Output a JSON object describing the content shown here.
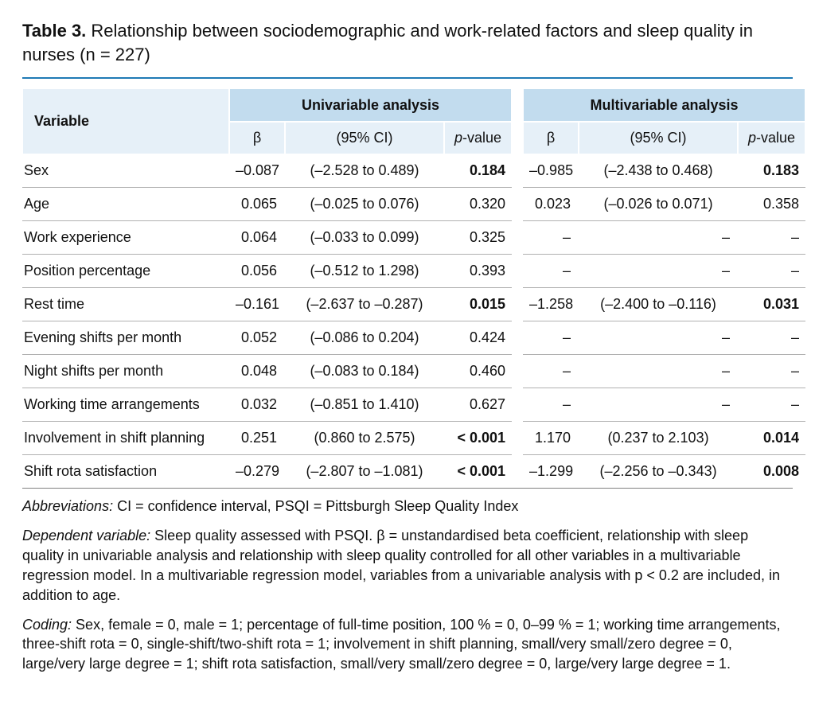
{
  "title_prefix_bold": "Table 3.",
  "title_rest": " Relationship between sociodemographic and work-related factors and sleep quality in nurses (n = 227)",
  "colors": {
    "rule_top": "#1f7ab5",
    "header_dark": "#c2dcee",
    "header_light": "#e6f0f8",
    "row_border": "#b0b0b0"
  },
  "headers": {
    "variable": "Variable",
    "uni": "Univariable analysis",
    "multi": "Multivariable analysis",
    "beta": "β",
    "ci": "(95% CI)",
    "p_prefix_ital": "p",
    "p_rest": "-value"
  },
  "rows": [
    {
      "variable": "Sex",
      "uni": {
        "beta": "–0.087",
        "ci": "(–2.528 to 0.489)",
        "p": "0.184",
        "p_bold": true
      },
      "multi": {
        "beta": "–0.985",
        "ci": "(–2.438 to 0.468)",
        "p": "0.183",
        "p_bold": true
      }
    },
    {
      "variable": "Age",
      "uni": {
        "beta": "0.065",
        "ci": "(–0.025 to 0.076)",
        "p": "0.320",
        "p_bold": false
      },
      "multi": {
        "beta": "0.023",
        "ci": "(–0.026 to 0.071)",
        "p": "0.358",
        "p_bold": false
      }
    },
    {
      "variable": "Work experience",
      "uni": {
        "beta": "0.064",
        "ci": "(–0.033 to 0.099)",
        "p": "0.325",
        "p_bold": false
      },
      "multi": {
        "beta": "–",
        "ci": "–",
        "p": "–",
        "p_bold": false
      }
    },
    {
      "variable": "Position percentage",
      "uni": {
        "beta": "0.056",
        "ci": "(–0.512 to 1.298)",
        "p": "0.393",
        "p_bold": false
      },
      "multi": {
        "beta": "–",
        "ci": "–",
        "p": "–",
        "p_bold": false
      }
    },
    {
      "variable": "Rest time",
      "uni": {
        "beta": "–0.161",
        "ci": "(–2.637 to –0.287)",
        "p": "0.015",
        "p_bold": true
      },
      "multi": {
        "beta": "–1.258",
        "ci": "(–2.400 to –0.116)",
        "p": "0.031",
        "p_bold": true
      }
    },
    {
      "variable": "Evening shifts per month",
      "uni": {
        "beta": "0.052",
        "ci": "(–0.086 to 0.204)",
        "p": "0.424",
        "p_bold": false
      },
      "multi": {
        "beta": "–",
        "ci": "–",
        "p": "–",
        "p_bold": false
      }
    },
    {
      "variable": "Night shifts per month",
      "uni": {
        "beta": "0.048",
        "ci": "(–0.083 to 0.184)",
        "p": "0.460",
        "p_bold": false
      },
      "multi": {
        "beta": "–",
        "ci": "–",
        "p": "–",
        "p_bold": false
      }
    },
    {
      "variable": "Working time arrangements",
      "uni": {
        "beta": "0.032",
        "ci": "(–0.851 to 1.410)",
        "p": "0.627",
        "p_bold": false
      },
      "multi": {
        "beta": "–",
        "ci": "–",
        "p": "–",
        "p_bold": false
      }
    },
    {
      "variable": "Involvement in shift planning",
      "uni": {
        "beta": "0.251",
        "ci": "(0.860 to 2.575)",
        "p": "< 0.001",
        "p_bold": true
      },
      "multi": {
        "beta": "1.170",
        "ci": "(0.237 to 2.103)",
        "p": "0.014",
        "p_bold": true
      }
    },
    {
      "variable": "Shift rota satisfaction",
      "uni": {
        "beta": "–0.279",
        "ci": "(–2.807 to –1.081)",
        "p": "< 0.001",
        "p_bold": true
      },
      "multi": {
        "beta": "–1.299",
        "ci": "(–2.256 to –0.343)",
        "p": "0.008",
        "p_bold": true
      }
    }
  ],
  "notes": {
    "abbrev_label_ital": "Abbreviations:",
    "abbrev_text": " CI = confidence interval, PSQI = Pittsburgh Sleep Quality Index",
    "depvar_label_ital": "Dependent variable:",
    "depvar_text": " Sleep quality assessed with PSQI. β = unstandardised beta coefficient, relationship with sleep quality in univariable analysis and relationship with sleep quality controlled for all other variables in a multivariable regression model. In a multivariable regression model, variables from a univariable analysis with p < 0.2 are included, in addition to age.",
    "coding_label_ital": "Coding:",
    "coding_text": " Sex, female = 0, male = 1; percentage of full-time position, 100 % = 0, 0–99 % = 1; working time arrangements, three-shift rota = 0, single-shift/two-shift rota = 1; involvement in shift planning, small/very small/zero degree = 0, large/very large degree = 1; shift rota satisfaction, small/very small/zero degree = 0, large/very large degree = 1."
  }
}
